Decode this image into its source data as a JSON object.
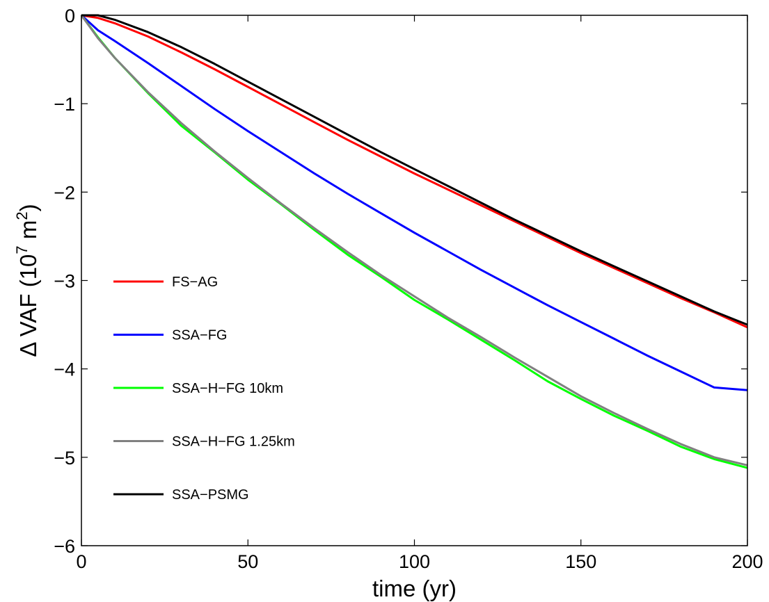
{
  "chart_data": {
    "type": "line",
    "xlabel": "time (yr)",
    "ylabel": {
      "prefix": "Δ VAF (10",
      "exp1": "7",
      "mid": " m",
      "exp2": "2",
      "suffix": ")"
    },
    "xlim": [
      0,
      200
    ],
    "ylim": [
      -6,
      0
    ],
    "xticks": [
      0,
      50,
      100,
      150,
      200
    ],
    "yticks": [
      0,
      -1,
      -2,
      -3,
      -4,
      -5,
      -6
    ],
    "xtick_labels": [
      "0",
      "50",
      "100",
      "150",
      "200"
    ],
    "ytick_labels": [
      "0",
      "−1",
      "−2",
      "−3",
      "−4",
      "−5",
      "−6"
    ],
    "grid": false,
    "legend_position": "left",
    "series": [
      {
        "name": "FS−AG",
        "color": "#ff0000",
        "x": [
          0,
          5,
          10,
          20,
          30,
          40,
          50,
          60,
          70,
          80,
          90,
          100,
          110,
          120,
          130,
          140,
          150,
          160,
          170,
          180,
          190,
          200
        ],
        "y": [
          0,
          -0.03,
          -0.09,
          -0.24,
          -0.42,
          -0.61,
          -0.81,
          -1.01,
          -1.21,
          -1.41,
          -1.6,
          -1.79,
          -1.97,
          -2.15,
          -2.33,
          -2.51,
          -2.69,
          -2.86,
          -3.03,
          -3.2,
          -3.36,
          -3.53
        ]
      },
      {
        "name": "SSA−FG",
        "color": "#0000ff",
        "x": [
          0,
          5,
          10,
          20,
          30,
          40,
          50,
          60,
          70,
          80,
          90,
          100,
          110,
          120,
          130,
          140,
          150,
          160,
          170,
          180,
          190,
          200
        ],
        "y": [
          0,
          -0.17,
          -0.29,
          -0.54,
          -0.8,
          -1.06,
          -1.31,
          -1.55,
          -1.79,
          -2.02,
          -2.24,
          -2.46,
          -2.67,
          -2.88,
          -3.08,
          -3.28,
          -3.47,
          -3.66,
          -3.85,
          -4.03,
          -4.21,
          -4.24
        ]
      },
      {
        "name": "SSA−H−FG 10km",
        "color": "#00ff00",
        "x": [
          0,
          5,
          10,
          20,
          30,
          40,
          50,
          60,
          70,
          80,
          90,
          100,
          110,
          120,
          130,
          140,
          150,
          160,
          170,
          180,
          190,
          200
        ],
        "y": [
          0,
          -0.25,
          -0.48,
          -0.88,
          -1.25,
          -1.55,
          -1.86,
          -2.14,
          -2.43,
          -2.71,
          -2.96,
          -3.22,
          -3.44,
          -3.67,
          -3.9,
          -4.14,
          -4.34,
          -4.53,
          -4.7,
          -4.88,
          -5.02,
          -5.12
        ]
      },
      {
        "name": "SSA−H−FG 1.25km",
        "color": "#808080",
        "x": [
          0,
          5,
          10,
          20,
          30,
          40,
          50,
          60,
          70,
          80,
          90,
          100,
          110,
          120,
          130,
          140,
          150,
          160,
          170,
          180,
          190,
          200
        ],
        "y": [
          0,
          -0.26,
          -0.48,
          -0.87,
          -1.22,
          -1.54,
          -1.84,
          -2.13,
          -2.41,
          -2.68,
          -2.94,
          -3.18,
          -3.42,
          -3.64,
          -3.87,
          -4.09,
          -4.31,
          -4.5,
          -4.68,
          -4.85,
          -5.0,
          -5.09
        ]
      },
      {
        "name": "SSA−PSMG",
        "color": "#000000",
        "x": [
          0,
          5,
          10,
          20,
          30,
          40,
          50,
          60,
          70,
          80,
          90,
          100,
          110,
          120,
          130,
          140,
          150,
          160,
          170,
          180,
          190,
          200
        ],
        "y": [
          0,
          0.0,
          -0.05,
          -0.19,
          -0.36,
          -0.55,
          -0.75,
          -0.95,
          -1.15,
          -1.35,
          -1.55,
          -1.74,
          -1.93,
          -2.12,
          -2.31,
          -2.49,
          -2.67,
          -2.84,
          -3.01,
          -3.18,
          -3.35,
          -3.5
        ]
      }
    ]
  }
}
